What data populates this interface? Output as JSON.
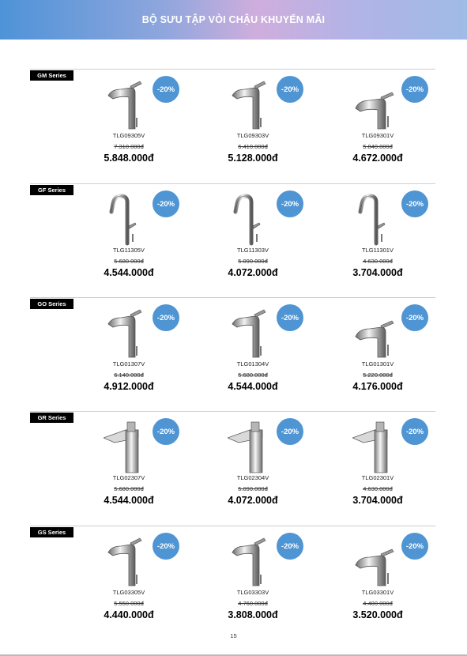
{
  "header": {
    "title": "BỘ SƯU TẬP VÒI CHẬU KHUYẾN MÃI"
  },
  "colors": {
    "discount_badge": "#4f95d4",
    "series_tag": "#000000"
  },
  "sections": [
    {
      "series": "GM Series",
      "products": [
        {
          "code": "TLG09305V",
          "old_price": "7.310.000đ",
          "new_price": "5.848.000đ",
          "discount": "-20%",
          "icon": "faucet-tall-icon"
        },
        {
          "code": "TLG09303V",
          "old_price": "6.410.000đ",
          "new_price": "5.128.000đ",
          "discount": "-20%",
          "icon": "faucet-tall-icon"
        },
        {
          "code": "TLG09301V",
          "old_price": "5.840.000đ",
          "new_price": "4.672.000đ",
          "discount": "-20%",
          "icon": "faucet-short-icon"
        }
      ]
    },
    {
      "series": "GF Series",
      "products": [
        {
          "code": "TLG11305V",
          "old_price": "5.680.000đ",
          "new_price": "4.544.000đ",
          "discount": "-20%",
          "icon": "faucet-gooseneck-icon"
        },
        {
          "code": "TLG11303V",
          "old_price": "5.090.000đ",
          "new_price": "4.072.000đ",
          "discount": "-20%",
          "icon": "faucet-gooseneck-icon"
        },
        {
          "code": "TLG11301V",
          "old_price": "4.630.000đ",
          "new_price": "3.704.000đ",
          "discount": "-20%",
          "icon": "faucet-gooseneck-icon"
        }
      ]
    },
    {
      "series": "GO Series",
      "products": [
        {
          "code": "TLG01307V",
          "old_price": "6.140.000đ",
          "new_price": "4.912.000đ",
          "discount": "-20%",
          "icon": "faucet-tall-icon"
        },
        {
          "code": "TLG01304V",
          "old_price": "5.680.000đ",
          "new_price": "4.544.000đ",
          "discount": "-20%",
          "icon": "faucet-tall-icon"
        },
        {
          "code": "TLG01301V",
          "old_price": "5.220.000đ",
          "new_price": "4.176.000đ",
          "discount": "-20%",
          "icon": "faucet-short-icon"
        }
      ]
    },
    {
      "series": "GR Series",
      "products": [
        {
          "code": "TLG02307V",
          "old_price": "5.680.000đ",
          "new_price": "4.544.000đ",
          "discount": "-20%",
          "icon": "faucet-square-icon"
        },
        {
          "code": "TLG02304V",
          "old_price": "5.090.000đ",
          "new_price": "4.072.000đ",
          "discount": "-20%",
          "icon": "faucet-square-icon"
        },
        {
          "code": "TLG02301V",
          "old_price": "4.630.000đ",
          "new_price": "3.704.000đ",
          "discount": "-20%",
          "icon": "faucet-square-icon"
        }
      ]
    },
    {
      "series": "GS Series",
      "products": [
        {
          "code": "TLG03305V",
          "old_price": "5.550.000đ",
          "new_price": "4.440.000đ",
          "discount": "-20%",
          "icon": "faucet-tall-icon"
        },
        {
          "code": "TLG03303V",
          "old_price": "4.760.000đ",
          "new_price": "3.808.000đ",
          "discount": "-20%",
          "icon": "faucet-tall-icon"
        },
        {
          "code": "TLG03301V",
          "old_price": "4.400.000đ",
          "new_price": "3.520.000đ",
          "discount": "-20%",
          "icon": "faucet-short-icon"
        }
      ]
    }
  ],
  "footer": {
    "page_number": "15"
  }
}
